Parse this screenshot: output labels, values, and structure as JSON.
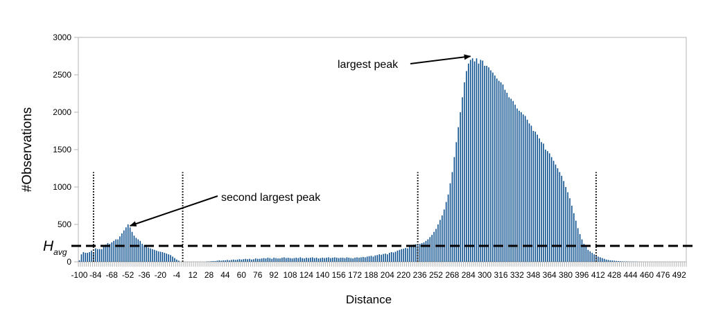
{
  "chart_data": {
    "type": "bar",
    "title": "",
    "xlabel": "Distance",
    "ylabel": "#Observations",
    "ylim": [
      0,
      3000
    ],
    "yticks": [
      0,
      500,
      1000,
      1500,
      2000,
      2500,
      3000
    ],
    "x_start": -100,
    "x_step": 2,
    "xtick_labels": [
      "-100",
      "-84",
      "-68",
      "-52",
      "-36",
      "-20",
      "-4",
      "12",
      "28",
      "44",
      "60",
      "76",
      "92",
      "108",
      "124",
      "140",
      "156",
      "172",
      "188",
      "204",
      "220",
      "236",
      "252",
      "268",
      "284",
      "300",
      "316",
      "332",
      "348",
      "364",
      "380",
      "396",
      "412",
      "428",
      "444",
      "460",
      "476",
      "492"
    ],
    "grid": false,
    "bar_color": "#0b4f8e",
    "values": [
      20,
      100,
      130,
      120,
      120,
      130,
      150,
      110,
      180,
      170,
      170,
      170,
      200,
      230,
      250,
      240,
      260,
      280,
      300,
      300,
      340,
      380,
      420,
      460,
      500,
      460,
      400,
      350,
      320,
      300,
      280,
      240,
      220,
      200,
      190,
      180,
      170,
      160,
      150,
      140,
      135,
      130,
      120,
      110,
      100,
      90,
      70,
      50,
      30,
      15,
      0,
      0,
      0,
      0,
      0,
      0,
      0,
      0,
      0,
      0,
      0,
      0,
      0,
      5,
      5,
      8,
      10,
      10,
      15,
      20,
      15,
      20,
      20,
      25,
      20,
      25,
      30,
      25,
      30,
      35,
      30,
      35,
      40,
      35,
      40,
      30,
      35,
      45,
      40,
      40,
      45,
      50,
      45,
      55,
      50,
      40,
      55,
      50,
      45,
      45,
      55,
      60,
      50,
      55,
      50,
      45,
      50,
      55,
      50,
      60,
      50,
      45,
      55,
      50,
      55,
      60,
      50,
      55,
      45,
      50,
      55,
      50,
      55,
      60,
      50,
      55,
      60,
      55,
      50,
      55,
      55,
      50,
      60,
      55,
      50,
      45,
      55,
      60,
      55,
      60,
      65,
      60,
      70,
      75,
      80,
      70,
      85,
      90,
      100,
      95,
      105,
      110,
      100,
      120,
      130,
      125,
      135,
      150,
      160,
      170,
      175,
      185,
      180,
      200,
      210,
      230,
      235,
      220,
      240,
      250,
      260,
      280,
      300,
      330,
      360,
      400,
      440,
      500,
      560,
      620,
      700,
      800,
      900,
      1050,
      1200,
      1400,
      1600,
      1800,
      2000,
      2200,
      2400,
      2550,
      2650,
      2700,
      2720,
      2680,
      2720,
      2650,
      2700,
      2690,
      2620,
      2620,
      2600,
      2560,
      2530,
      2490,
      2450,
      2420,
      2400,
      2370,
      2300,
      2260,
      2200,
      2180,
      2150,
      2100,
      2050,
      2020,
      2000,
      1970,
      1950,
      1900,
      1850,
      1820,
      1750,
      1740,
      1700,
      1650,
      1600,
      1580,
      1500,
      1480,
      1450,
      1400,
      1350,
      1300,
      1250,
      1200,
      1150,
      1080,
      1000,
      930,
      850,
      750,
      650,
      550,
      450,
      370,
      300,
      240,
      200,
      160,
      140,
      120,
      100,
      85,
      70,
      60,
      50,
      40,
      30,
      25,
      20,
      18,
      15,
      12,
      10,
      8,
      6,
      5,
      5,
      4,
      3,
      3,
      2,
      2,
      1,
      1,
      0,
      0,
      0,
      0,
      0,
      0,
      0,
      0,
      0,
      0,
      0,
      0,
      0,
      0,
      0,
      0,
      0,
      0,
      0,
      0,
      0,
      0
    ],
    "h_avg": {
      "label": "H",
      "subscript": "avg",
      "value": 213
    },
    "vertical_markers": {
      "x": [
        -86,
        2,
        234,
        410
      ],
      "height": 1200
    },
    "annotations": [
      {
        "text": "largest peak",
        "target_x": 288,
        "target_y": 2720
      },
      {
        "text": "second largest peak",
        "target_x": -52,
        "target_y": 500
      }
    ]
  }
}
